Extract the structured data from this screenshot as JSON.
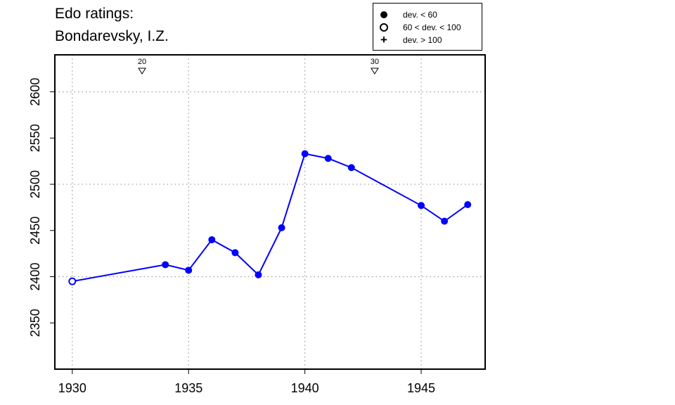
{
  "title_line1": "Edo ratings:",
  "title_line2": "Bondarevsky, I.Z.",
  "legend": [
    {
      "symbol": "filled-circle",
      "label": "dev. < 60"
    },
    {
      "symbol": "open-circle",
      "label": "60 < dev. < 100"
    },
    {
      "symbol": "plus",
      "label": "dev. > 100"
    }
  ],
  "chart_data": {
    "type": "line",
    "x": [
      1930,
      1934,
      1935,
      1936,
      1937,
      1938,
      1939,
      1940,
      1941,
      1942,
      1945,
      1946,
      1947
    ],
    "y": [
      2395,
      2413,
      2407,
      2440,
      2426,
      2402,
      2453,
      2533,
      2528,
      2518,
      2477,
      2460,
      2478
    ],
    "marker": [
      "open",
      "filled",
      "filled",
      "filled",
      "filled",
      "filled",
      "filled",
      "filled",
      "filled",
      "filled",
      "filled",
      "filled",
      "filled"
    ],
    "xlim": [
      1929.25,
      1947.75
    ],
    "ylim": [
      2300,
      2640
    ],
    "xticks": [
      1930,
      1935,
      1940,
      1945
    ],
    "yticks": [
      2350,
      2400,
      2450,
      2500,
      2550,
      2600
    ],
    "x_gridlines": [
      1930,
      1935,
      1940,
      1945
    ],
    "y_gridlines": [
      2400,
      2500,
      2600
    ],
    "grid": "dotted",
    "line_color": "#0000ff",
    "annotations": [
      {
        "x": 1933,
        "label": "20",
        "symbol": "down-triangle"
      },
      {
        "x": 1943,
        "label": "30",
        "symbol": "down-triangle"
      }
    ]
  }
}
